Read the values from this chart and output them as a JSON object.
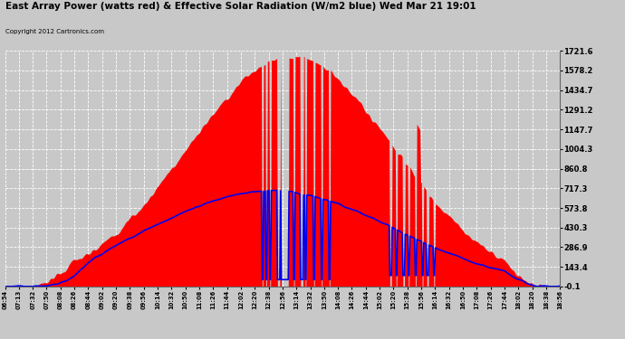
{
  "title": "East Array Power (watts red) & Effective Solar Radiation (W/m2 blue) Wed Mar 21 19:01",
  "copyright": "Copyright 2012 Cartronics.com",
  "y_ticks": [
    -0.1,
    143.4,
    286.9,
    430.3,
    573.8,
    717.3,
    860.8,
    1004.3,
    1147.7,
    1291.2,
    1434.7,
    1578.2,
    1721.6
  ],
  "y_min": -0.1,
  "y_max": 1721.6,
  "x_labels": [
    "06:54",
    "07:13",
    "07:32",
    "07:50",
    "08:08",
    "08:26",
    "08:44",
    "09:02",
    "09:20",
    "09:38",
    "09:56",
    "10:14",
    "10:32",
    "10:50",
    "11:08",
    "11:26",
    "11:44",
    "12:02",
    "12:20",
    "12:38",
    "12:56",
    "13:14",
    "13:32",
    "13:50",
    "14:08",
    "14:26",
    "14:44",
    "15:02",
    "15:20",
    "15:38",
    "15:56",
    "16:14",
    "16:32",
    "16:50",
    "17:08",
    "17:26",
    "17:44",
    "18:02",
    "18:20",
    "18:38",
    "18:56"
  ],
  "bg_color": "#c8c8c8",
  "plot_bg": "#c8c8c8",
  "red_color": "#ff0000",
  "blue_color": "#0000ee",
  "grid_color": "#ffffff"
}
